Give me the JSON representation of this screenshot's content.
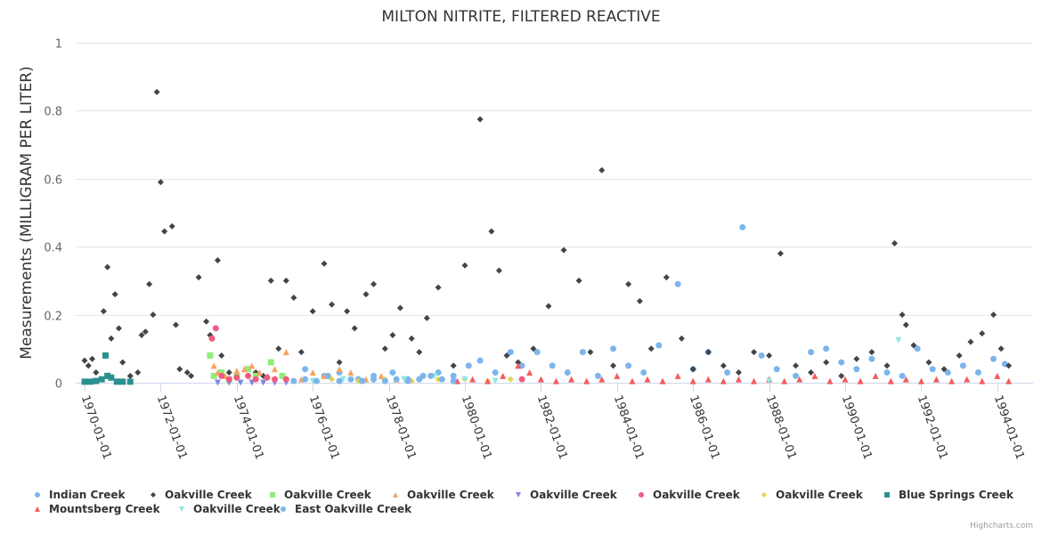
{
  "chart_data": {
    "type": "scatter",
    "title": "MILTON NITRITE, FILTERED REACTIVE",
    "xlabel": "",
    "ylabel": "Measurements (MILLIGRAM PER LITER)",
    "ylim": [
      0,
      1
    ],
    "xlim": [
      "1969-10-01",
      "1995-01-01"
    ],
    "y_ticks": [
      "0",
      "0.2",
      "0.4",
      "0.6",
      "0.8",
      "1"
    ],
    "y_tick_values": [
      0,
      0.2,
      0.4,
      0.6,
      0.8,
      1
    ],
    "x_ticks": [
      "1970-01-01",
      "1972-01-01",
      "1974-01-01",
      "1976-01-01",
      "1978-01-01",
      "1980-01-01",
      "1982-01-01",
      "1984-01-01",
      "1986-01-01",
      "1988-01-01",
      "1990-01-01",
      "1992-01-01",
      "1994-01-01"
    ],
    "x_tick_years": [
      1970,
      1972,
      1974,
      1976,
      1978,
      1980,
      1982,
      1984,
      1986,
      1988,
      1990,
      1992,
      1994
    ],
    "grid": true,
    "legend_position": "bottom",
    "credits": "Highcharts.com",
    "series": [
      {
        "name": "Indian Creek",
        "marker": "circle",
        "color": "#7cb5ec",
        "x": [
          1975.8,
          1976.3,
          1976.7,
          1977.2,
          1977.6,
          1978.1,
          1978.5,
          1978.9,
          1979.3,
          1979.7,
          1980.1,
          1980.4,
          1980.8,
          1981.2,
          1981.5,
          1981.9,
          1982.3,
          1982.7,
          1983.1,
          1983.5,
          1983.9,
          1984.3,
          1984.7,
          1985.1,
          1985.6,
          1986.0,
          1986.4,
          1986.9,
          1987.3,
          1987.8,
          1988.2,
          1988.7,
          1989.1,
          1989.5,
          1989.9,
          1990.3,
          1990.7,
          1991.1,
          1991.5,
          1991.9,
          1992.3,
          1992.7,
          1993.1,
          1993.5,
          1993.9,
          1994.2
        ],
        "y": [
          0.04,
          0.02,
          0.03,
          0.01,
          0.02,
          0.03,
          0.01,
          0.02,
          0.03,
          0.02,
          0.05,
          0.065,
          0.03,
          0.09,
          0.05,
          0.09,
          0.05,
          0.03,
          0.09,
          0.02,
          0.1,
          0.05,
          0.03,
          0.11,
          0.29,
          0.04,
          0.09,
          0.03,
          0.457,
          0.08,
          0.04,
          0.02,
          0.09,
          0.1,
          0.06,
          0.04,
          0.07,
          0.03,
          0.02,
          0.1,
          0.04,
          0.03,
          0.05,
          0.03,
          0.07,
          0.055
        ]
      },
      {
        "name": "Oakville Creek",
        "marker": "diamond",
        "color": "#434348",
        "x": [
          1970.0,
          1970.1,
          1970.2,
          1970.3,
          1970.5,
          1970.6,
          1970.7,
          1970.8,
          1970.9,
          1971.0,
          1971.2,
          1971.4,
          1971.5,
          1971.6,
          1971.7,
          1971.8,
          1971.9,
          1972.0,
          1972.1,
          1972.3,
          1972.4,
          1972.5,
          1972.7,
          1972.8,
          1973.0,
          1973.2,
          1973.3,
          1973.5,
          1973.6,
          1973.8,
          1974.0,
          1974.3,
          1974.5,
          1974.7,
          1974.9,
          1975.1,
          1975.3,
          1975.5,
          1975.7,
          1976.0,
          1976.3,
          1976.5,
          1976.7,
          1976.9,
          1977.1,
          1977.4,
          1977.6,
          1977.9,
          1978.1,
          1978.3,
          1978.6,
          1978.8,
          1979.0,
          1979.3,
          1979.7,
          1980.0,
          1980.4,
          1980.7,
          1980.9,
          1981.1,
          1981.4,
          1981.8,
          1982.2,
          1982.6,
          1983.0,
          1983.3,
          1983.6,
          1983.9,
          1984.3,
          1984.6,
          1984.9,
          1985.3,
          1985.7,
          1986.0,
          1986.4,
          1986.8,
          1987.2,
          1987.6,
          1988.0,
          1988.3,
          1988.7,
          1989.1,
          1989.5,
          1989.9,
          1990.3,
          1990.7,
          1991.1,
          1991.3,
          1991.5,
          1991.6,
          1991.8,
          1992.2,
          1992.6,
          1993.0,
          1993.3,
          1993.6,
          1993.9,
          1994.1,
          1994.3
        ],
        "y": [
          0.065,
          0.05,
          0.07,
          0.03,
          0.21,
          0.34,
          0.13,
          0.26,
          0.16,
          0.06,
          0.02,
          0.03,
          0.14,
          0.15,
          0.29,
          0.2,
          0.855,
          0.59,
          0.445,
          0.46,
          0.17,
          0.04,
          0.03,
          0.02,
          0.31,
          0.18,
          0.14,
          0.36,
          0.08,
          0.03,
          0.02,
          0.02,
          0.03,
          0.02,
          0.3,
          0.1,
          0.3,
          0.25,
          0.09,
          0.21,
          0.35,
          0.23,
          0.06,
          0.21,
          0.16,
          0.26,
          0.29,
          0.1,
          0.14,
          0.22,
          0.13,
          0.09,
          0.19,
          0.28,
          0.05,
          0.345,
          0.775,
          0.445,
          0.33,
          0.08,
          0.06,
          0.1,
          0.225,
          0.39,
          0.3,
          0.09,
          0.625,
          0.05,
          0.29,
          0.24,
          0.1,
          0.31,
          0.13,
          0.04,
          0.09,
          0.05,
          0.03,
          0.09,
          0.08,
          0.38,
          0.05,
          0.03,
          0.06,
          0.02,
          0.07,
          0.09,
          0.05,
          0.41,
          0.2,
          0.17,
          0.11,
          0.06,
          0.04,
          0.08,
          0.12,
          0.145,
          0.2,
          0.1,
          0.05
        ]
      },
      {
        "name": "Oakville Creek",
        "marker": "square",
        "color": "#90ed7d",
        "x": [
          1973.3,
          1973.4,
          1973.6,
          1973.8,
          1974.0,
          1974.3,
          1974.5,
          1974.9,
          1975.2
        ],
        "y": [
          0.08,
          0.02,
          0.03,
          0.01,
          0.02,
          0.04,
          0.02,
          0.06,
          0.02
        ]
      },
      {
        "name": "Oakville Creek",
        "marker": "triangle",
        "color": "#f7a35c",
        "x": [
          1973.4,
          1973.5,
          1973.7,
          1974.0,
          1974.2,
          1974.4,
          1974.6,
          1974.8,
          1975.0,
          1975.3,
          1975.7,
          1976.0,
          1976.3,
          1976.7,
          1977.0,
          1977.4,
          1977.8,
          1978.2
        ],
        "y": [
          0.05,
          0.03,
          0.02,
          0.035,
          0.04,
          0.05,
          0.03,
          0.02,
          0.04,
          0.09,
          0.01,
          0.03,
          0.02,
          0.04,
          0.03,
          0.01,
          0.02,
          0.01
        ]
      },
      {
        "name": "Oakville Creek",
        "marker": "triangle-down",
        "color": "#8085e9",
        "x": [
          1973.5,
          1973.8,
          1974.1,
          1974.4,
          1974.7,
          1975.0,
          1975.3
        ],
        "y": [
          0.0,
          0.0,
          0.0,
          0.0,
          0.0,
          0.0,
          0.0
        ]
      },
      {
        "name": "Oakville Creek",
        "marker": "circle",
        "color": "#f15c80",
        "x": [
          1973.35,
          1973.45,
          1973.6,
          1973.8,
          1974.0,
          1974.3,
          1974.5,
          1974.8,
          1975.0,
          1975.3,
          1981.5
        ],
        "y": [
          0.13,
          0.16,
          0.02,
          0.01,
          0.015,
          0.02,
          0.01,
          0.015,
          0.01,
          0.01,
          0.01
        ]
      },
      {
        "name": "Oakville Creek",
        "marker": "diamond",
        "color": "#e4d354",
        "x": [
          1976.5,
          1977.2,
          1977.9,
          1978.6,
          1979.3,
          1980.0,
          1980.6,
          1981.2
        ],
        "y": [
          0.01,
          0.005,
          0.01,
          0.005,
          0.01,
          0.01,
          0.005,
          0.01
        ]
      },
      {
        "name": "Blue Springs Creek",
        "marker": "square",
        "color": "#2b908f",
        "x": [
          1970.0,
          1970.15,
          1970.3,
          1970.45,
          1970.55,
          1970.6,
          1970.7,
          1970.85,
          1971.0,
          1971.2
        ],
        "y": [
          0.003,
          0.003,
          0.005,
          0.01,
          0.08,
          0.02,
          0.015,
          0.003,
          0.003,
          0.003
        ]
      },
      {
        "name": "Mountsberg Creek",
        "marker": "triangle",
        "color": "#f45b5b",
        "x": [
          1979.8,
          1980.2,
          1980.6,
          1981.0,
          1981.4,
          1981.7,
          1982.0,
          1982.4,
          1982.8,
          1983.2,
          1983.6,
          1984.0,
          1984.4,
          1984.8,
          1985.2,
          1985.6,
          1986.0,
          1986.4,
          1986.8,
          1987.2,
          1987.6,
          1988.0,
          1988.4,
          1988.8,
          1989.2,
          1989.6,
          1990.0,
          1990.4,
          1990.8,
          1991.2,
          1991.6,
          1992.0,
          1992.4,
          1992.8,
          1993.2,
          1993.6,
          1994.0,
          1994.3
        ],
        "y": [
          0.005,
          0.01,
          0.005,
          0.02,
          0.05,
          0.03,
          0.01,
          0.005,
          0.01,
          0.005,
          0.01,
          0.02,
          0.005,
          0.01,
          0.005,
          0.02,
          0.005,
          0.01,
          0.005,
          0.01,
          0.005,
          0.01,
          0.005,
          0.01,
          0.02,
          0.005,
          0.01,
          0.005,
          0.02,
          0.005,
          0.01,
          0.005,
          0.01,
          0.005,
          0.01,
          0.005,
          0.02,
          0.005
        ]
      },
      {
        "name": "Oakville Creek",
        "marker": "triangle-down",
        "color": "#91e8e1",
        "x": [
          1976.0,
          1976.8,
          1977.6,
          1978.4,
          1979.2,
          1980.0,
          1980.8,
          1988.0,
          1991.4
        ],
        "y": [
          0.005,
          0.01,
          0.005,
          0.01,
          0.02,
          0.01,
          0.005,
          0.005,
          0.125
        ]
      },
      {
        "name": "East Oakville Creek",
        "marker": "circle",
        "color": "#7cb5ec",
        "x": [
          1975.5,
          1975.8,
          1976.1,
          1976.4,
          1976.7,
          1977.0,
          1977.3,
          1977.6,
          1977.9,
          1978.2,
          1978.5,
          1978.8,
          1979.1,
          1979.4,
          1979.7
        ],
        "y": [
          0.005,
          0.01,
          0.005,
          0.02,
          0.005,
          0.01,
          0.005,
          0.01,
          0.005,
          0.01,
          0.005,
          0.01,
          0.02,
          0.01,
          0.005
        ]
      }
    ]
  }
}
